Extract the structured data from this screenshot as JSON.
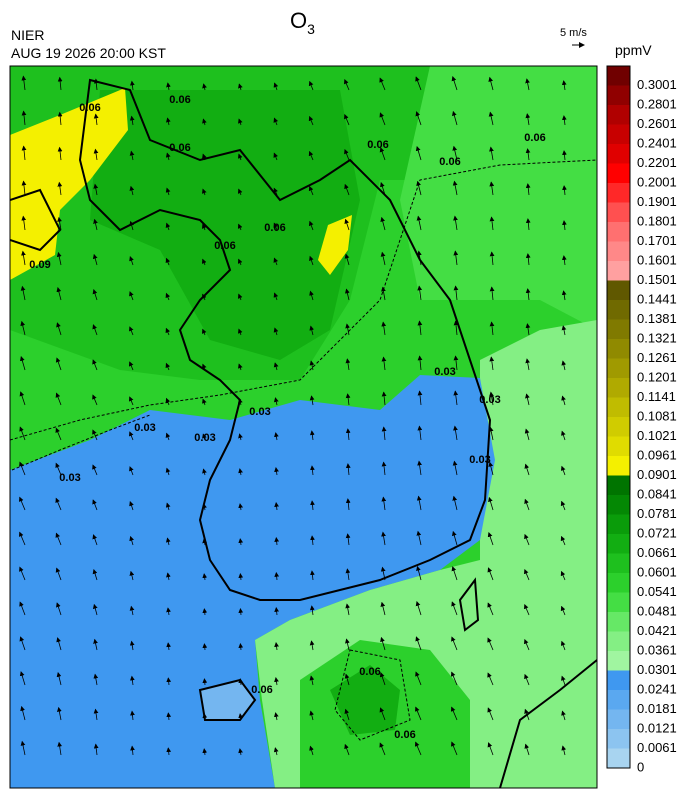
{
  "header": {
    "title": {
      "text": "O",
      "subscript": "3"
    },
    "agency": "NIER",
    "time": "AUG 19 2026 20:00 KST",
    "wind_scale": "5 m/s",
    "unit": "ppmV"
  },
  "colorbar": {
    "levels": [
      0,
      0.0061,
      0.0121,
      0.0181,
      0.0241,
      0.0301,
      0.0361,
      0.0421,
      0.0481,
      0.0541,
      0.0601,
      0.0661,
      0.0721,
      0.0781,
      0.0841,
      0.0901,
      0.0961,
      0.1021,
      0.1081,
      0.1141,
      0.1201,
      0.1261,
      0.1321,
      0.1381,
      0.1441,
      0.1501,
      0.1601,
      0.1701,
      0.1801,
      0.1901,
      0.2001,
      0.2201,
      0.2401,
      0.2601,
      0.2801,
      0.3001
    ],
    "colors": [
      "#a8d4f0",
      "#8cc4f0",
      "#74b6f0",
      "#5aa8f0",
      "#3f98f0",
      "#a0f5a0",
      "#84ef84",
      "#66e866",
      "#44de44",
      "#2cd02c",
      "#1ec01e",
      "#12ae12",
      "#0a9c0a",
      "#048804",
      "#007400",
      "#f4f000",
      "#e0dc00",
      "#d0cc00",
      "#c0bc00",
      "#b0aa00",
      "#a09a00",
      "#908a00",
      "#807a00",
      "#706a00",
      "#605800",
      "#ffa0a0",
      "#ff8888",
      "#ff7070",
      "#ff5050",
      "#ff2828",
      "#ff0000",
      "#e00000",
      "#c80000",
      "#b00000",
      "#900000",
      "#700000"
    ]
  },
  "map": {
    "contour_labels": [
      "0.06",
      "0.06",
      "0.09",
      "0.06",
      "0.06",
      "0.06",
      "0.06",
      "0.06",
      "0.06",
      "0.03",
      "0.03",
      "0.03",
      "0.03",
      "0.03",
      "0.03",
      "0.03",
      "0.06",
      "0.06",
      "0.06"
    ]
  }
}
